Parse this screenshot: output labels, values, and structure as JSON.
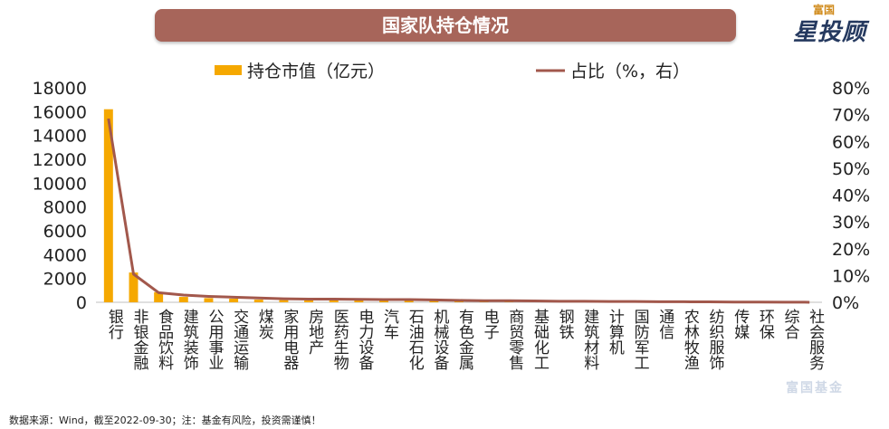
{
  "header": {
    "title": "国家队持仓情况"
  },
  "logo": {
    "top": "富国",
    "main": "星投顾"
  },
  "watermark": "富国基金",
  "footnote": "数据来源：Wind，截至2022-09-30；注：基金有风险，投资需谨慎！",
  "colors": {
    "bar": "#f5a800",
    "line": "#a2584c",
    "title_bg": "#a7655a"
  },
  "chart_data": {
    "type": "bar",
    "categories": [
      "银行",
      "非银金融",
      "食品饮料",
      "建筑装饰",
      "公用事业",
      "交通运输",
      "煤炭",
      "家用电器",
      "房地产",
      "医药生物",
      "电力设备",
      "汽车",
      "石油石化",
      "机械设备",
      "有色金属",
      "电子",
      "商贸零售",
      "基础化工",
      "钢铁",
      "建筑材料",
      "计算机",
      "国防军工",
      "通信",
      "农林牧渔",
      "纺织服饰",
      "传媒",
      "环保",
      "综合",
      "社会服务"
    ],
    "series": [
      {
        "name": "持仓市值（亿元）",
        "type": "bar",
        "axis": "left",
        "values": [
          16200,
          2500,
          850,
          450,
          350,
          300,
          220,
          180,
          170,
          170,
          160,
          150,
          150,
          130,
          100,
          90,
          80,
          70,
          60,
          50,
          40,
          35,
          30,
          25,
          20,
          15,
          10,
          5,
          3
        ]
      },
      {
        "name": "占比（%，右）",
        "type": "line",
        "axis": "right",
        "values": [
          68.5,
          10.5,
          3.6,
          2.7,
          2.2,
          1.9,
          1.6,
          1.3,
          1.2,
          1.2,
          1.1,
          1.0,
          1.0,
          0.9,
          0.7,
          0.6,
          0.6,
          0.5,
          0.4,
          0.4,
          0.3,
          0.3,
          0.2,
          0.2,
          0.15,
          0.1,
          0.08,
          0.04,
          0.02
        ]
      }
    ],
    "y_left": {
      "min": 0,
      "max": 18000,
      "ticks": [
        "0",
        "2000",
        "4000",
        "6000",
        "8000",
        "10000",
        "12000",
        "14000",
        "16000",
        "18000"
      ]
    },
    "y_right": {
      "min": 0,
      "max": 80,
      "ticks": [
        "0%",
        "10%",
        "20%",
        "30%",
        "40%",
        "50%",
        "60%",
        "70%",
        "80%"
      ]
    },
    "legend_position": "top",
    "grid": false
  }
}
